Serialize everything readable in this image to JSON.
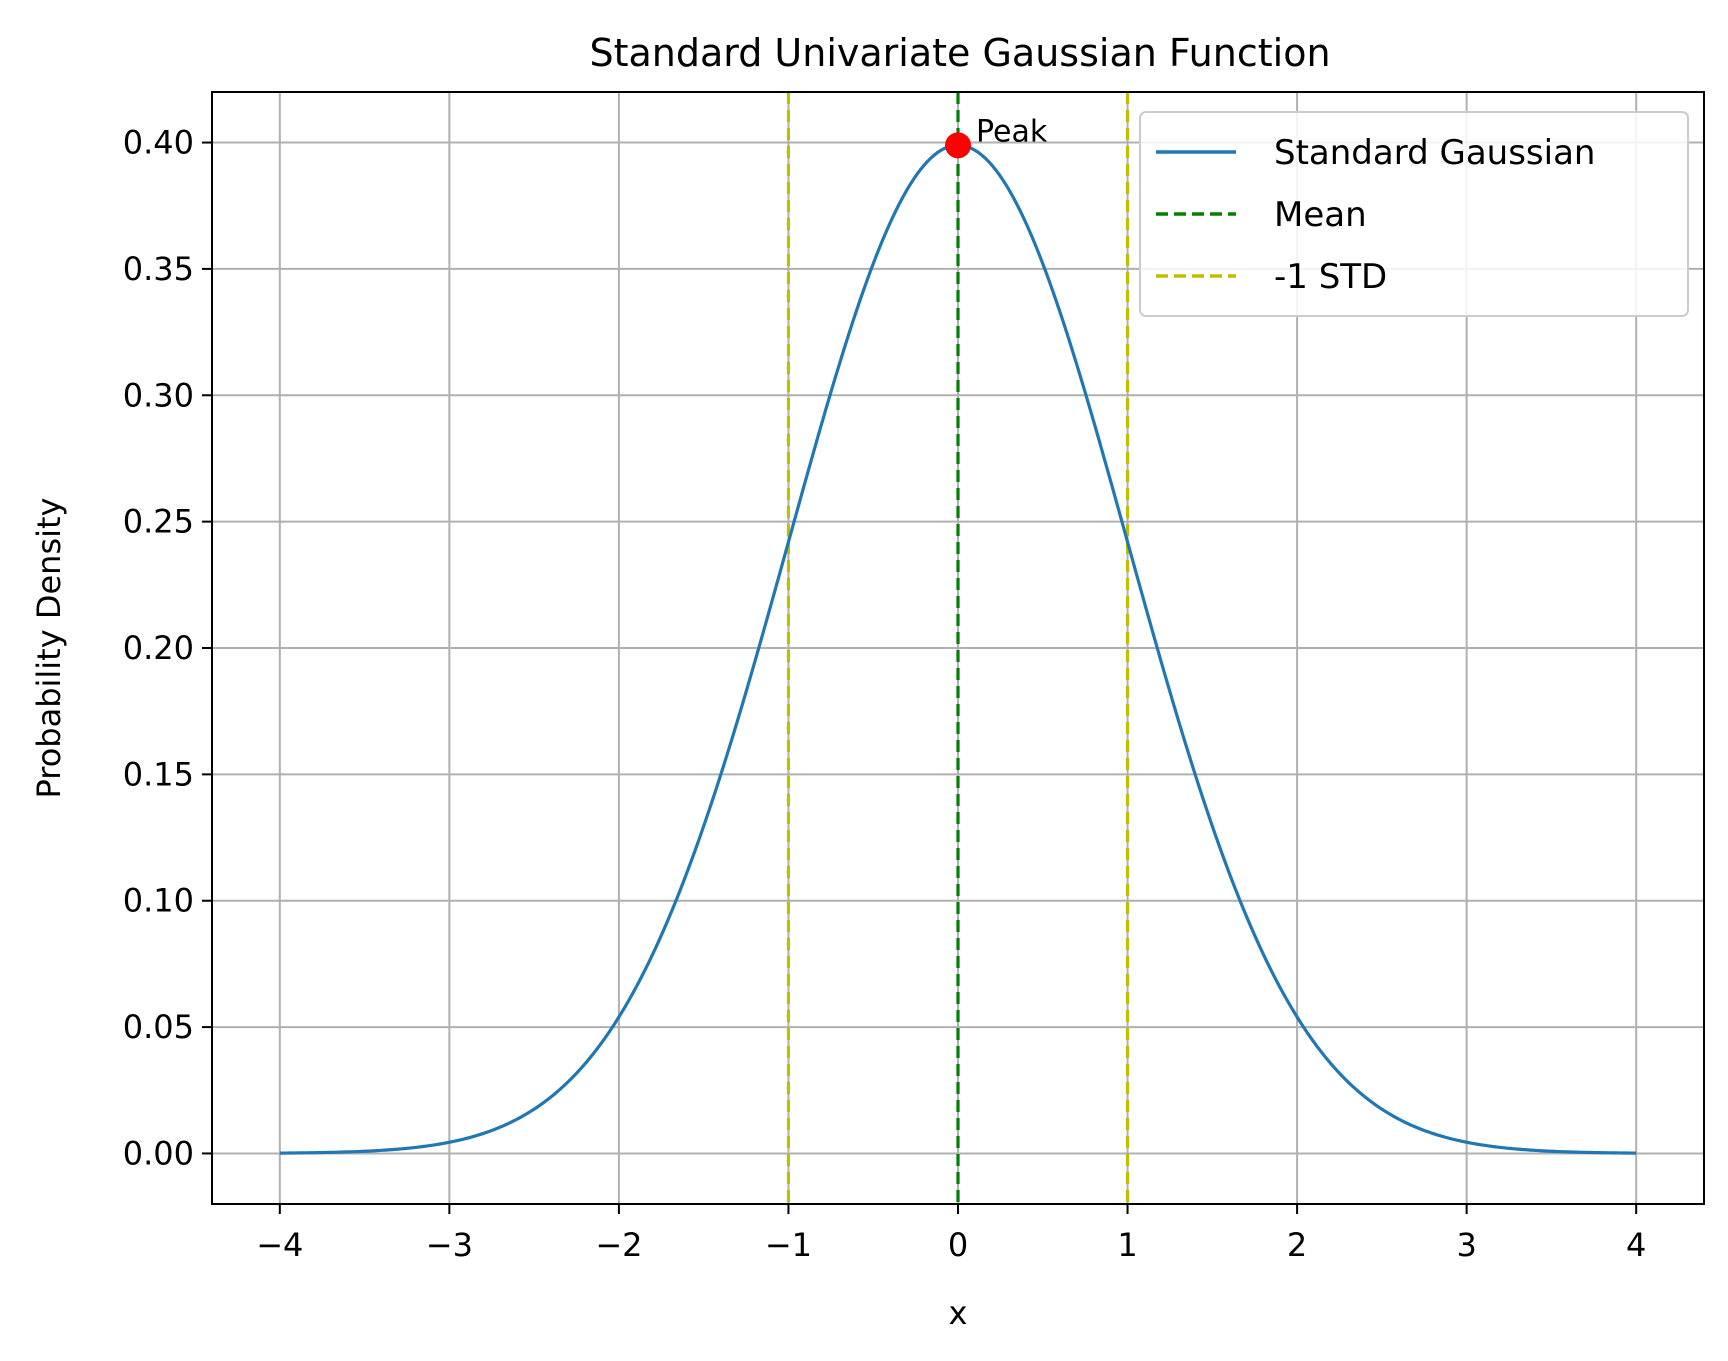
{
  "chart_data": {
    "type": "line",
    "title": "Standard Univariate Gaussian Function",
    "xlabel": "x",
    "ylabel": "Probability Density",
    "xlim": [
      -4.4,
      4.4
    ],
    "ylim": [
      -0.02,
      0.42
    ],
    "x_ticks": [
      -4,
      -3,
      -2,
      -1,
      0,
      1,
      2,
      3,
      4
    ],
    "x_tick_labels": [
      "−4",
      "−3",
      "−2",
      "−1",
      "0",
      "1",
      "2",
      "3",
      "4"
    ],
    "y_ticks": [
      0.0,
      0.05,
      0.1,
      0.15,
      0.2,
      0.25,
      0.3,
      0.35,
      0.4
    ],
    "y_tick_labels": [
      "0.00",
      "0.05",
      "0.10",
      "0.15",
      "0.20",
      "0.25",
      "0.30",
      "0.35",
      "0.40"
    ],
    "grid": true,
    "legend_position": "top-right",
    "series": [
      {
        "name": "Standard Gaussian",
        "style": "solid",
        "color": "#1f77b4",
        "x": [
          -4.0,
          -3.5,
          -3.0,
          -2.5,
          -2.0,
          -1.75,
          -1.5,
          -1.25,
          -1.0,
          -0.75,
          -0.5,
          -0.25,
          0.0,
          0.25,
          0.5,
          0.75,
          1.0,
          1.25,
          1.5,
          1.75,
          2.0,
          2.5,
          3.0,
          3.5,
          4.0
        ],
        "y": [
          0.0001,
          0.0009,
          0.0044,
          0.0175,
          0.054,
          0.0863,
          0.1295,
          0.1826,
          0.242,
          0.3011,
          0.3521,
          0.3867,
          0.3989,
          0.3867,
          0.3521,
          0.3011,
          0.242,
          0.1826,
          0.1295,
          0.0863,
          0.054,
          0.0175,
          0.0044,
          0.0009,
          0.0001
        ]
      }
    ],
    "vlines": [
      {
        "name": "Mean",
        "x": 0,
        "color": "#008000",
        "style": "dashed"
      },
      {
        "name": "-1 STD",
        "x": -1,
        "color": "#bfbf00",
        "style": "dashed"
      },
      {
        "name": "",
        "x": 1,
        "color": "#bfbf00",
        "style": "dashed"
      }
    ],
    "peak": {
      "x": 0,
      "y": 0.3989,
      "label": "Peak",
      "color": "#ff0000"
    },
    "legend": [
      {
        "label": "Standard Gaussian",
        "color": "#1f77b4",
        "style": "solid"
      },
      {
        "label": "Mean",
        "color": "#008000",
        "style": "dashed"
      },
      {
        "label": "-1 STD",
        "color": "#bfbf00",
        "style": "dashed"
      }
    ]
  }
}
